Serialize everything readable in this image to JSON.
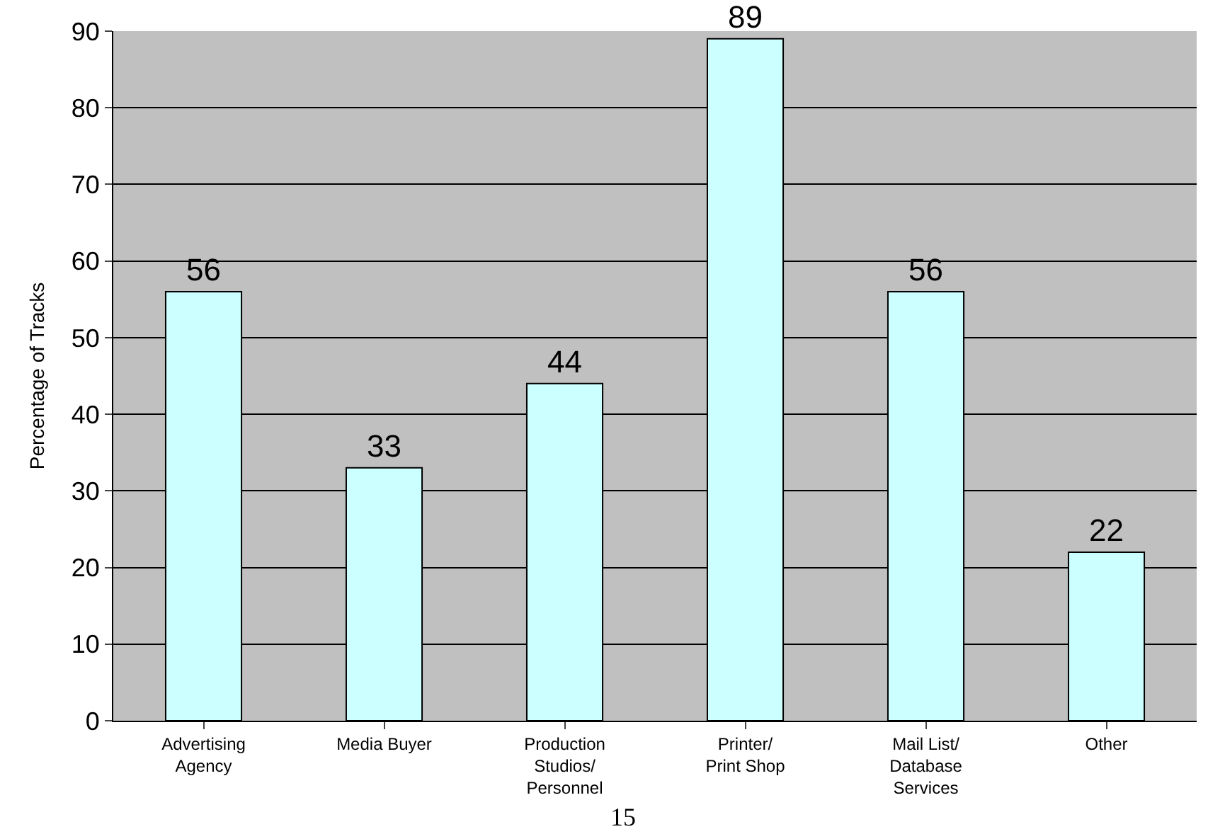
{
  "chart_data": {
    "type": "bar",
    "ylabel": "Percentage of Tracks",
    "categories": [
      "Advertising Agency",
      "Media Buyer",
      "Production Studios/ Personnel",
      "Printer/ Print Shop",
      "Mail List/ Database Services",
      "Other"
    ],
    "values": [
      56,
      33,
      44,
      89,
      56,
      22
    ],
    "color": "#ccffff",
    "ylim": [
      0,
      90
    ],
    "yticks": [
      0,
      10,
      20,
      30,
      40,
      50,
      60,
      70,
      80,
      90
    ],
    "grid": "y",
    "data_labels": true,
    "annotations": [
      "15"
    ]
  }
}
